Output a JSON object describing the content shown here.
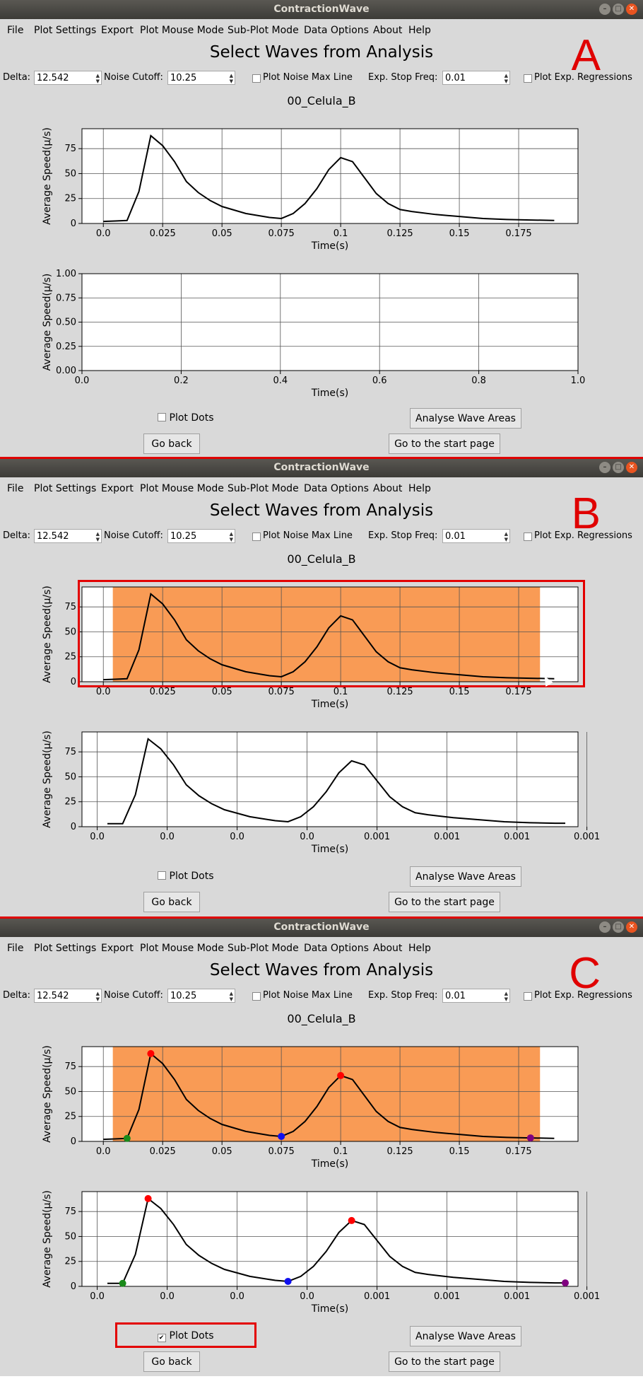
{
  "window": {
    "title": "ContractionWave",
    "buttons": [
      "–",
      "□",
      "✕"
    ]
  },
  "menu": [
    "File",
    "Plot Settings",
    "Export",
    "Plot Mouse Mode",
    "Sub-Plot Mode",
    "Data Options",
    "About",
    "Help"
  ],
  "heading": "Select Waves from Analysis",
  "controls": {
    "delta_label": "Delta:",
    "delta_value": "12.542",
    "noise_label": "Noise Cutoff:",
    "noise_value": "10.25",
    "noise_line_label": "Plot Noise Max Line",
    "stop_label": "Exp. Stop Freq:",
    "stop_value": "0.01",
    "regressions_label": "Plot Exp. Regressions"
  },
  "plot_title": "00_Celula_B",
  "axis": {
    "xlabel": "Time(s)",
    "ylabel": "Average Speed(μ/s)"
  },
  "buttons": {
    "plot_dots": "Plot Dots",
    "analyse": "Analyse Wave Areas",
    "go_back": "Go back",
    "start_page": "Go to the start page"
  },
  "panels": [
    {
      "letter": "A",
      "selection": false,
      "dots": false,
      "subplot": "empty",
      "plot_dots_checked": false
    },
    {
      "letter": "B",
      "selection": true,
      "dots": false,
      "subplot": "wave",
      "plot_dots_checked": false
    },
    {
      "letter": "C",
      "selection": true,
      "dots": true,
      "subplot": "wave",
      "plot_dots_checked": true
    }
  ],
  "chart_data": [
    {
      "type": "line",
      "xlabel": "Time(s)",
      "ylabel": "Average Speed(μ/s)",
      "xlim": [
        -0.009,
        0.2
      ],
      "ylim": [
        0,
        95
      ],
      "x_ticks": [
        "0.0",
        "0.025",
        "0.05",
        "0.075",
        "0.1",
        "0.125",
        "0.15",
        "0.175"
      ],
      "y_ticks": [
        "0",
        "25",
        "50",
        "75"
      ],
      "x": [
        0,
        0.005,
        0.01,
        0.015,
        0.02,
        0.025,
        0.03,
        0.035,
        0.04,
        0.045,
        0.05,
        0.06,
        0.07,
        0.075,
        0.08,
        0.085,
        0.09,
        0.095,
        0.1,
        0.105,
        0.11,
        0.115,
        0.12,
        0.125,
        0.13,
        0.14,
        0.15,
        0.16,
        0.17,
        0.18,
        0.19
      ],
      "y": [
        2,
        2.5,
        3,
        32,
        88,
        78,
        62,
        42,
        31,
        23,
        17,
        10,
        6,
        5,
        10,
        20,
        35,
        54,
        66,
        62,
        46,
        30,
        20,
        14,
        12,
        9,
        7,
        5,
        4,
        3.5,
        3
      ],
      "selection": [
        0.004,
        0.184
      ],
      "dots": [
        {
          "x": 0.01,
          "y": 3,
          "color": "#1a8a1a"
        },
        {
          "x": 0.02,
          "y": 88,
          "color": "#ff0000"
        },
        {
          "x": 0.075,
          "y": 5,
          "color": "#1010ee"
        },
        {
          "x": 0.1,
          "y": 66,
          "color": "#ff0000"
        },
        {
          "x": 0.18,
          "y": 3.5,
          "color": "#800080"
        }
      ]
    },
    {
      "type": "line",
      "xlabel": "Time(s)",
      "ylabel": "Average Speed(μ/s)",
      "xlim": [
        0.0,
        1.0
      ],
      "ylim": [
        0,
        1.0
      ],
      "x_ticks": [
        "0.0",
        "0.2",
        "0.4",
        "0.6",
        "0.8",
        "1.0"
      ],
      "y_ticks": [
        "0.00",
        "0.25",
        "0.50",
        "0.75",
        "1.00"
      ],
      "series": []
    },
    {
      "type": "line",
      "xlabel": "Time(s)",
      "ylabel": "Average Speed(μ/s)",
      "x_ticks": [
        "0.0",
        "0.0",
        "0.0",
        "0.0",
        "0.001",
        "0.001",
        "0.001",
        "0.001"
      ],
      "y_ticks": [
        "0",
        "25",
        "50",
        "75"
      ],
      "x": [
        0.004,
        0.01,
        0.015,
        0.02,
        0.025,
        0.03,
        0.035,
        0.04,
        0.045,
        0.05,
        0.06,
        0.07,
        0.075,
        0.08,
        0.085,
        0.09,
        0.095,
        0.1,
        0.105,
        0.11,
        0.115,
        0.12,
        0.125,
        0.13,
        0.14,
        0.15,
        0.16,
        0.17,
        0.18,
        0.184
      ],
      "y": [
        3,
        3,
        32,
        88,
        78,
        62,
        42,
        31,
        23,
        17,
        10,
        6,
        5,
        10,
        20,
        35,
        54,
        66,
        62,
        46,
        30,
        20,
        14,
        12,
        9,
        7,
        5,
        4,
        3.5,
        3.5
      ]
    }
  ]
}
